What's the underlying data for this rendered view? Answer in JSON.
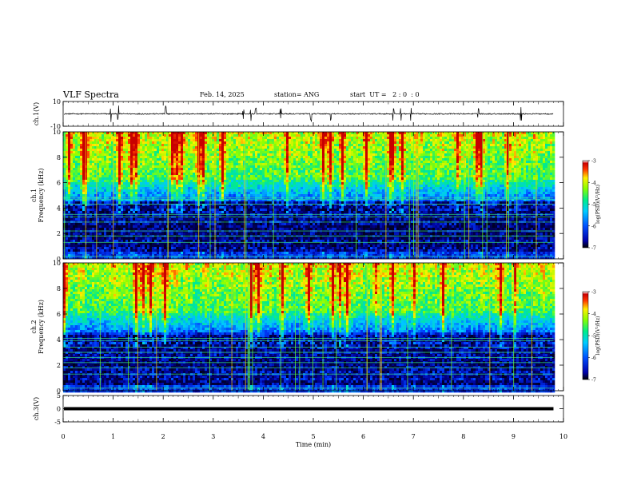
{
  "header": {
    "title": "VLF Spectra",
    "date": "Feb. 14, 2025",
    "station": "station= ANG",
    "start": "start  UT =   2 : 0  : 0"
  },
  "chart_data": [
    {
      "type": "line",
      "panel": "ch1-waveform",
      "ylabel": "ch.1(V)",
      "ylim": [
        -10,
        10
      ],
      "yticks": [
        "10",
        "-10"
      ],
      "baseline": 0,
      "spikes_min": [
        0.95,
        1.1,
        2.05,
        3.6,
        3.75,
        3.85,
        4.35,
        4.95,
        5.35,
        6.6,
        6.75,
        6.95,
        8.3,
        9.15
      ]
    },
    {
      "type": "heatmap",
      "panel": "ch1-spectrogram",
      "ylabel": "ch.1\nFrequency (kHz)",
      "ylim": [
        0,
        10
      ],
      "yticks": [
        "10",
        "8",
        "6",
        "4",
        "2",
        "0"
      ],
      "colorbar": {
        "label": "log(PSD)(V²/Hz)",
        "range": [
          -7,
          -3
        ],
        "ticks": [
          "-3",
          "-4",
          "-5",
          "-6",
          "-7"
        ],
        "colors": [
          "#000000",
          "#0000cc",
          "#00aaff",
          "#00ee88",
          "#88ff00",
          "#ffff00",
          "#ff4400",
          "#cc0000",
          "#ffffff"
        ]
      },
      "lines_khz": [
        0.2,
        1.3,
        1.8,
        2.2,
        2.9,
        3.3,
        3.5,
        4.3,
        4.7,
        4.8
      ]
    },
    {
      "type": "heatmap",
      "panel": "ch2-spectrogram",
      "ylabel": "ch.2\nFrequency (kHz)",
      "ylim": [
        0,
        10
      ],
      "yticks": [
        "10",
        "8",
        "6",
        "4",
        "2",
        "0"
      ],
      "colorbar": {
        "label": "log(PSD)(V²/Hz)",
        "range": [
          -7,
          -3
        ],
        "ticks": [
          "-3",
          "-4",
          "-5",
          "-6",
          "-7"
        ]
      },
      "lines_khz": [
        0.2,
        1.3,
        1.8,
        2.2,
        2.6,
        3.0,
        3.4,
        3.9,
        4.1
      ]
    },
    {
      "type": "line",
      "panel": "ch3-waveform",
      "ylabel": "ch.3(V)",
      "ylim": [
        -5,
        5
      ],
      "yticks": [
        "5",
        "0",
        "-5"
      ],
      "baseline": 0
    }
  ],
  "xaxis": {
    "label": "Time (min)",
    "range": [
      0,
      10
    ],
    "ticks": [
      "0",
      "1",
      "2",
      "3",
      "4",
      "5",
      "6",
      "7",
      "8",
      "9",
      "10"
    ],
    "data_end": 9.8
  }
}
